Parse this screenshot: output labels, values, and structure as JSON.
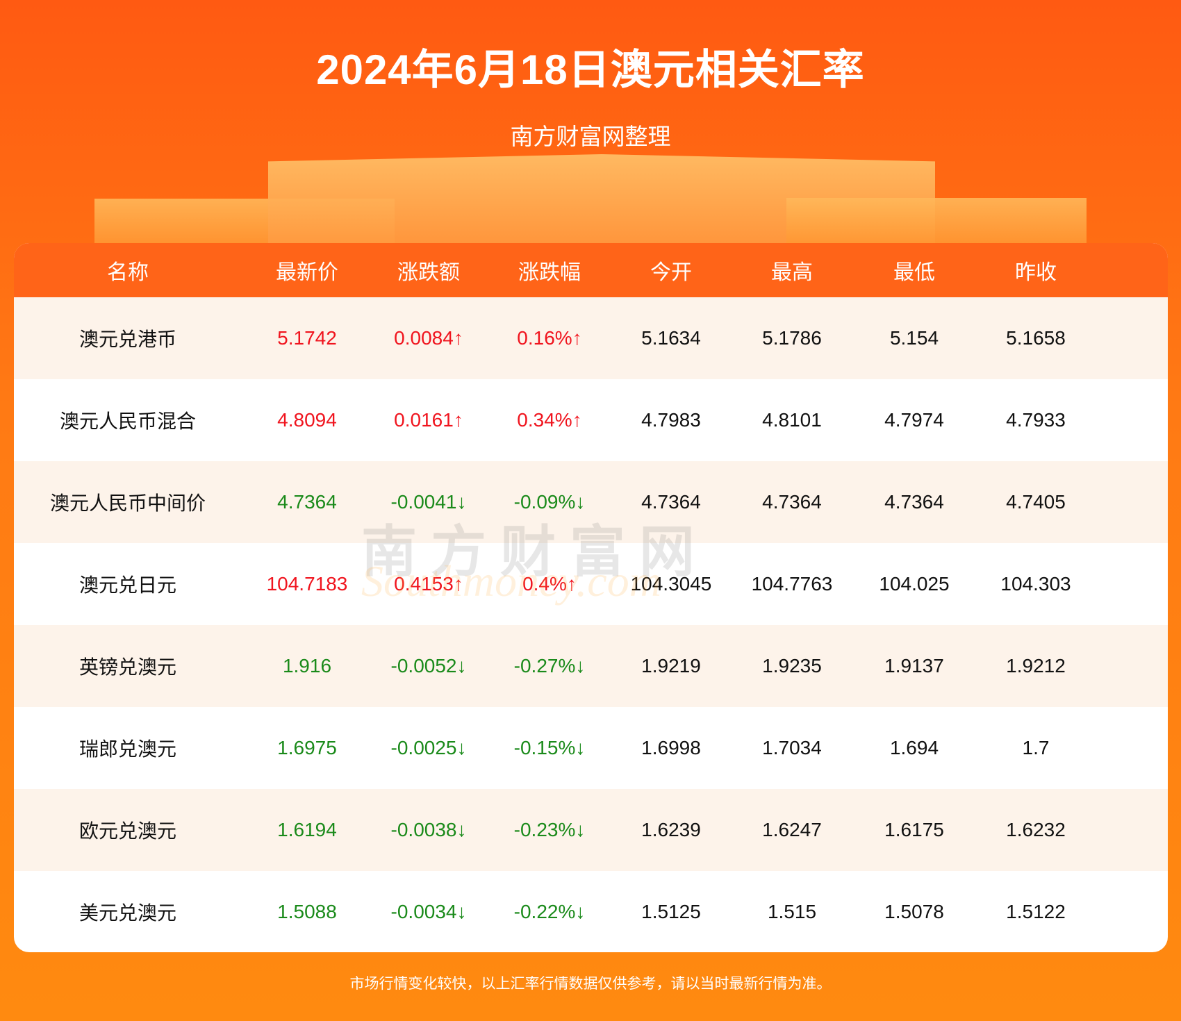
{
  "title": "2024年6月18日澳元相关汇率",
  "subtitle": "南方财富网整理",
  "watermark": "南方财富网 southmoney.com",
  "colors": {
    "up": "#f0141e",
    "down": "#1a8a1a",
    "header": "#ff6418"
  },
  "headers": [
    "名称",
    "最新价",
    "涨跌额",
    "涨跌幅",
    "今开",
    "最高",
    "最低",
    "昨收"
  ],
  "rows": [
    {
      "trend": "up",
      "cells": [
        "澳元兑港币",
        "5.1742",
        "0.0084↑",
        "0.16%↑",
        "5.1634",
        "5.1786",
        "5.154",
        "5.1658"
      ]
    },
    {
      "trend": "up",
      "cells": [
        "澳元人民币混合",
        "4.8094",
        "0.0161↑",
        "0.34%↑",
        "4.7983",
        "4.8101",
        "4.7974",
        "4.7933"
      ]
    },
    {
      "trend": "down",
      "cells": [
        "澳元人民币中间价",
        "4.7364",
        "-0.0041↓",
        "-0.09%↓",
        "4.7364",
        "4.7364",
        "4.7364",
        "4.7405"
      ]
    },
    {
      "trend": "up",
      "cells": [
        "澳元兑日元",
        "104.7183",
        "0.4153↑",
        "0.4%↑",
        "104.3045",
        "104.7763",
        "104.025",
        "104.303"
      ]
    },
    {
      "trend": "down",
      "cells": [
        "英镑兑澳元",
        "1.916",
        "-0.0052↓",
        "-0.27%↓",
        "1.9219",
        "1.9235",
        "1.9137",
        "1.9212"
      ]
    },
    {
      "trend": "down",
      "cells": [
        "瑞郎兑澳元",
        "1.6975",
        "-0.0025↓",
        "-0.15%↓",
        "1.6998",
        "1.7034",
        "1.694",
        "1.7"
      ]
    },
    {
      "trend": "down",
      "cells": [
        "欧元兑澳元",
        "1.6194",
        "-0.0038↓",
        "-0.23%↓",
        "1.6239",
        "1.6247",
        "1.6175",
        "1.6232"
      ]
    },
    {
      "trend": "down",
      "cells": [
        "美元兑澳元",
        "1.5088",
        "-0.0034↓",
        "-0.22%↓",
        "1.5125",
        "1.515",
        "1.5078",
        "1.5122"
      ]
    }
  ],
  "footer": "市场行情变化较快，以上汇率行情数据仅供参考，请以当时最新行情为准。"
}
